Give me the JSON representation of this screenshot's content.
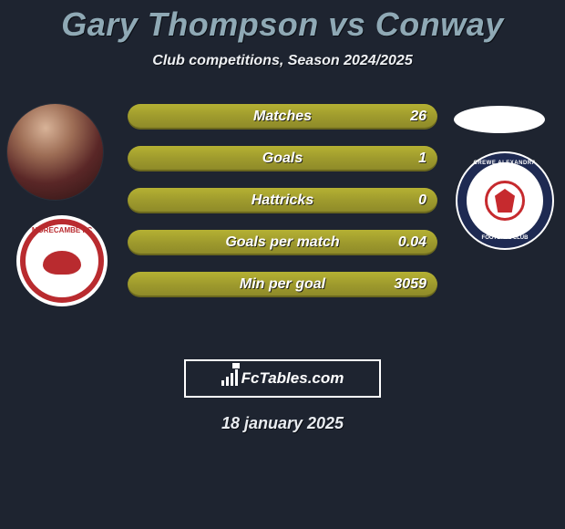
{
  "header": {
    "title": "Gary Thompson vs Conway",
    "subtitle": "Club competitions, Season 2024/2025"
  },
  "colors": {
    "page_bg": "#1e2430",
    "title_color": "#8fa9b5",
    "bar_gradient_top": "#b5b133",
    "bar_gradient_bottom": "#8c8828",
    "text_light": "#ffffff",
    "shadow": "#0b0e14",
    "left_club_primary": "#b92b2f",
    "right_club_primary": "#1e2a52",
    "right_club_accent": "#c62a2e"
  },
  "stats": [
    {
      "label": "Matches",
      "value": "26"
    },
    {
      "label": "Goals",
      "value": "1"
    },
    {
      "label": "Hattricks",
      "value": "0"
    },
    {
      "label": "Goals per match",
      "value": "0.04"
    },
    {
      "label": "Min per goal",
      "value": "3059"
    }
  ],
  "left": {
    "player_name": "Gary Thompson",
    "club_name": "Morecambe FC",
    "club_label": "MORECAMBE FC"
  },
  "right": {
    "player_name": "Conway",
    "club_name": "Crewe Alexandra",
    "club_label_top": "CREWE ALEXANDRA",
    "club_label_bottom": "FOOTBALL CLUB"
  },
  "brand": {
    "text": "FcTables.com"
  },
  "date": "18 january 2025"
}
